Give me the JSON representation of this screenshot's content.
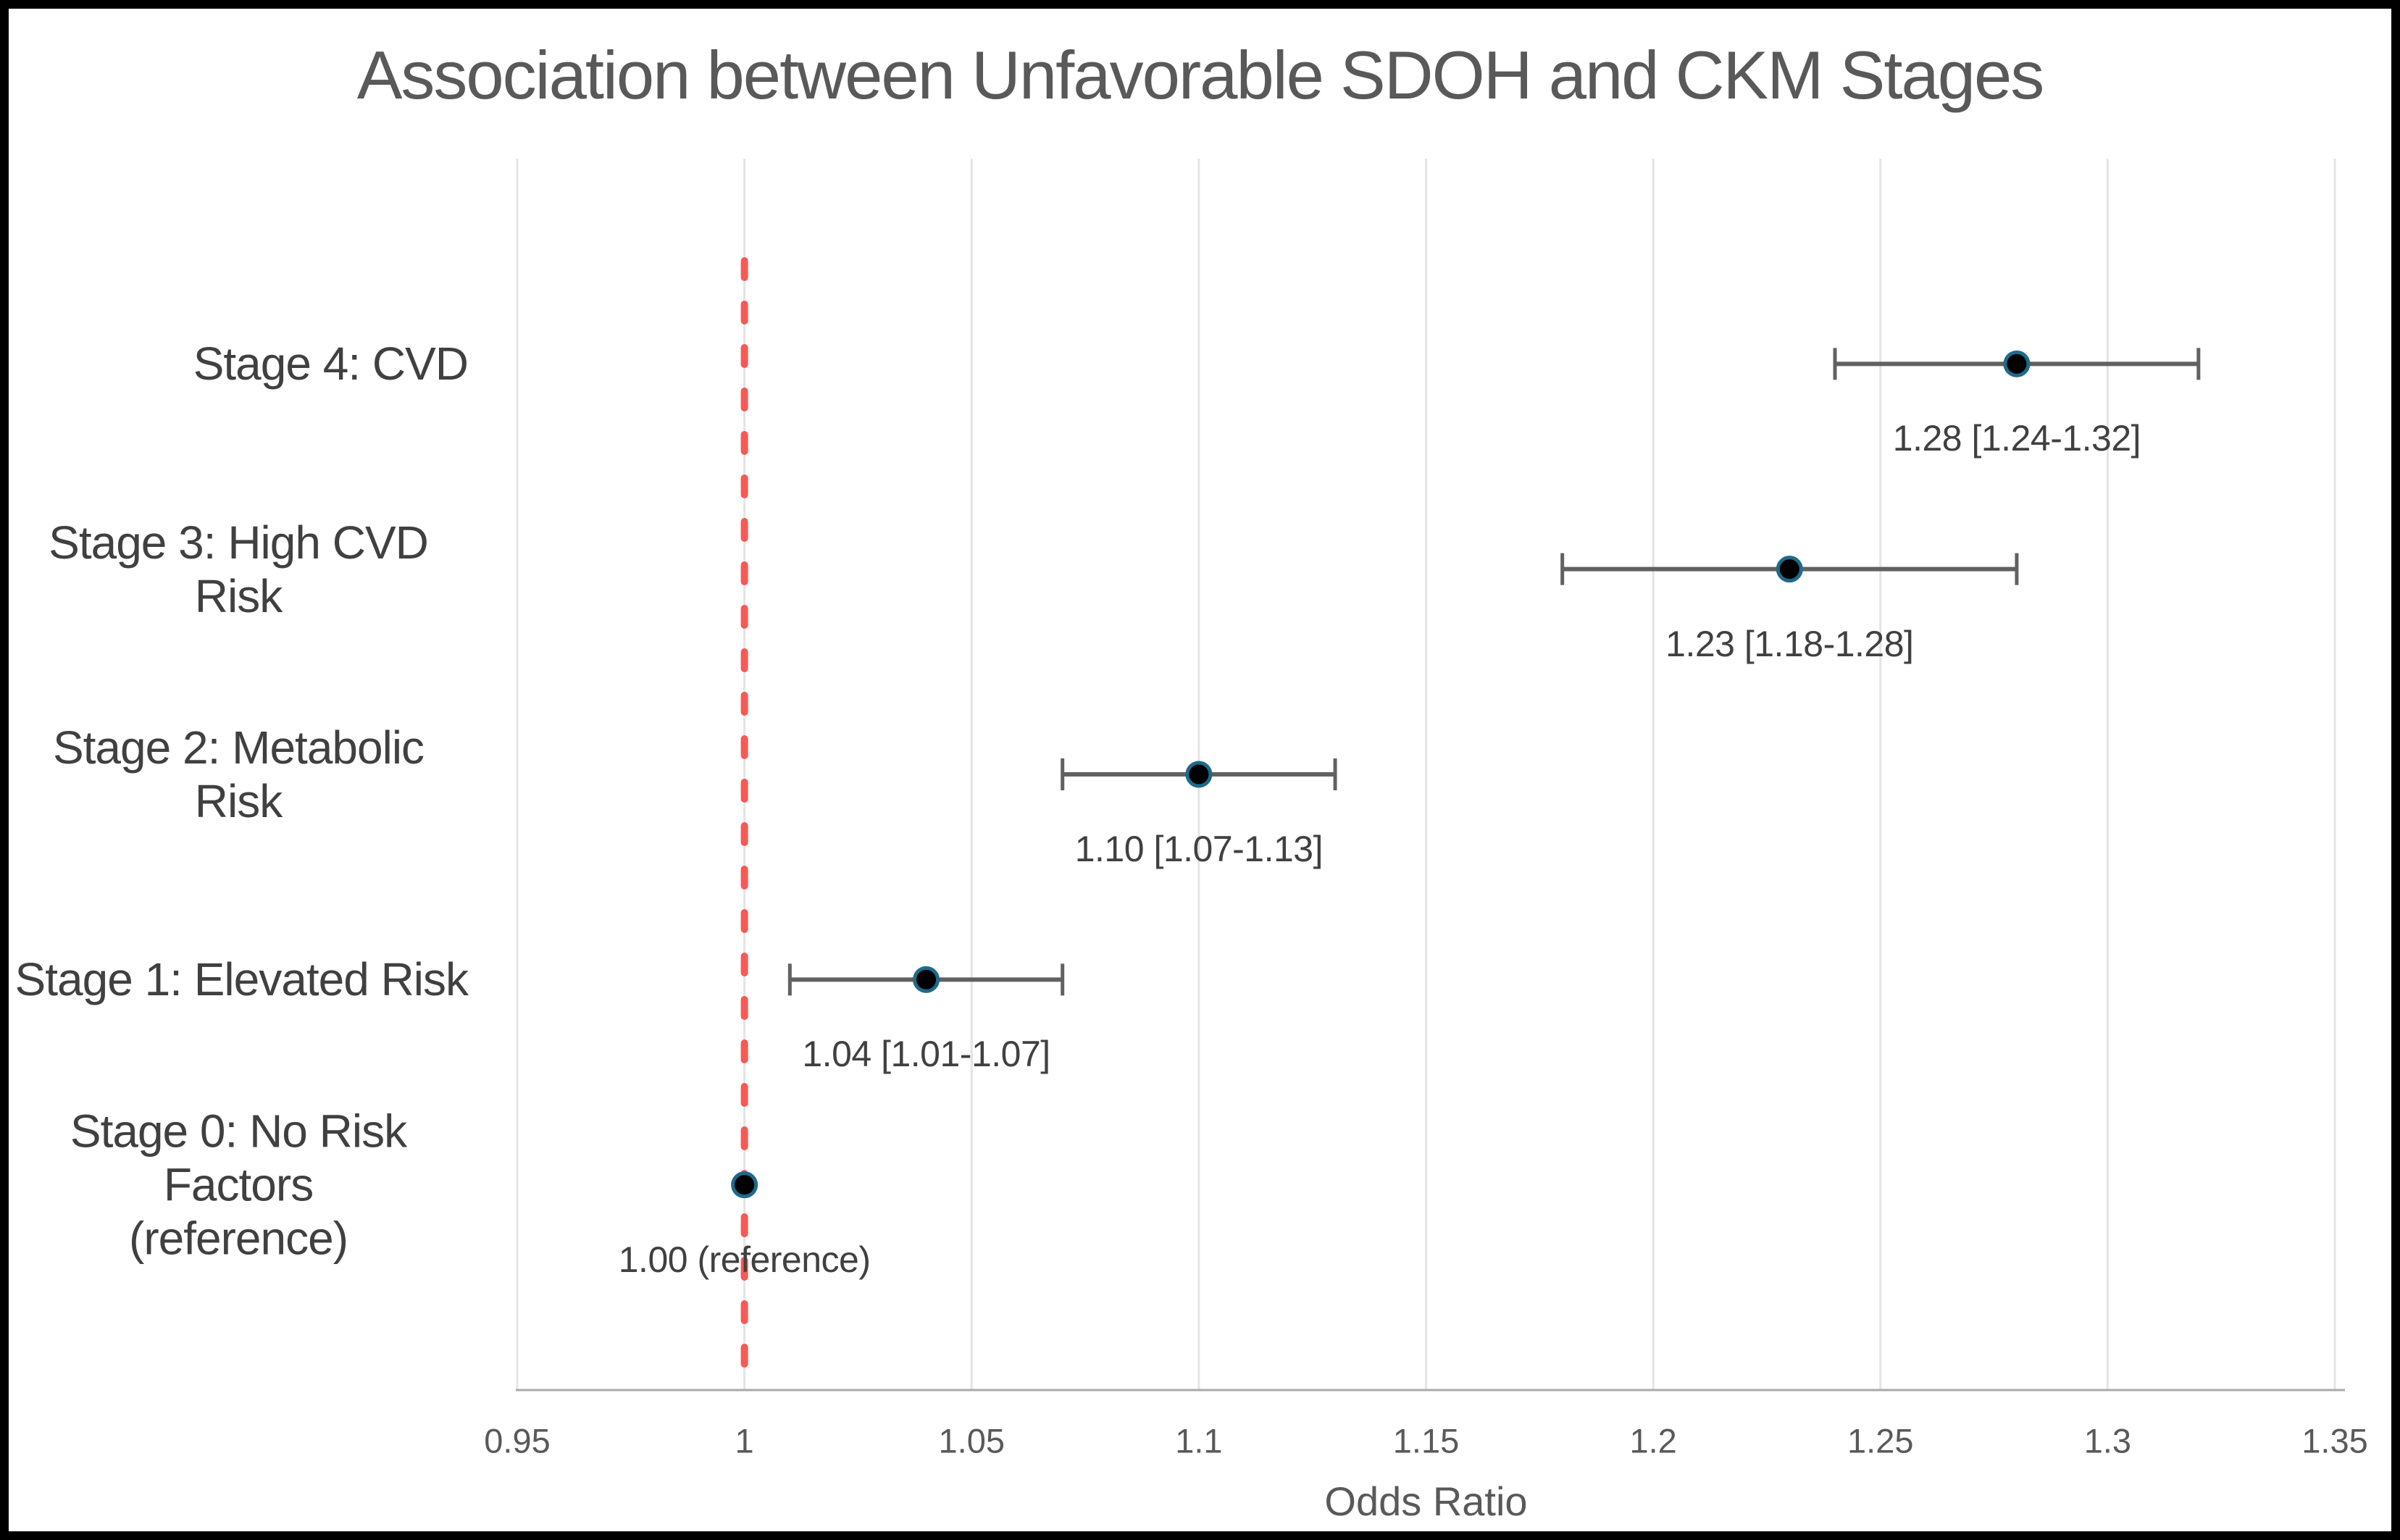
{
  "chart_data": {
    "type": "scatter",
    "variant": "forest-plot",
    "title": "Association between Unfavorable SDOH and CKM Stages",
    "xlabel": "Odds Ratio",
    "xlim": [
      0.95,
      1.35
    ],
    "xticks": [
      0.95,
      1,
      1.05,
      1.1,
      1.15,
      1.2,
      1.25,
      1.3,
      1.35
    ],
    "xtick_labels": [
      "0.95",
      "1",
      "1.05",
      "1.1",
      "1.15",
      "1.2",
      "1.25",
      "1.3",
      "1.35"
    ],
    "grid": "vertical-gridlines-on",
    "legend": "none",
    "reference_line": {
      "x": 1,
      "style": "dashed"
    },
    "rows": [
      {
        "label_lines": [
          "Stage 4: CVD"
        ],
        "or": 1.28,
        "ci_low": 1.24,
        "ci_high": 1.32,
        "annotation": "1.28 [1.24-1.32]"
      },
      {
        "label_lines": [
          "Stage 3: High CVD Risk"
        ],
        "or": 1.23,
        "ci_low": 1.18,
        "ci_high": 1.28,
        "annotation": "1.23 [1.18-1.28]"
      },
      {
        "label_lines": [
          "Stage 2: Metabolic Risk"
        ],
        "or": 1.1,
        "ci_low": 1.07,
        "ci_high": 1.13,
        "annotation": "1.10 [1.07-1.13]"
      },
      {
        "label_lines": [
          "Stage 1: Elevated Risk"
        ],
        "or": 1.04,
        "ci_low": 1.01,
        "ci_high": 1.07,
        "annotation": "1.04 [1.01-1.07]"
      },
      {
        "label_lines": [
          "Stage 0: No Risk Factors",
          "(reference)"
        ],
        "or": 1.0,
        "ci_low": null,
        "ci_high": null,
        "annotation": "1.00 (reference)"
      }
    ],
    "colors": {
      "reference_line": "#F75954",
      "marker_fill": "#000000",
      "marker_ring": "#1E6A8A",
      "error_bar": "#616161",
      "gridline": "#E4E4E4",
      "axis_line": "#A9A9A9",
      "title_text": "#595959",
      "row_label_text": "#404040",
      "annotation_text": "#404040",
      "tick_text": "#595959",
      "figure_border": "#000000"
    }
  }
}
